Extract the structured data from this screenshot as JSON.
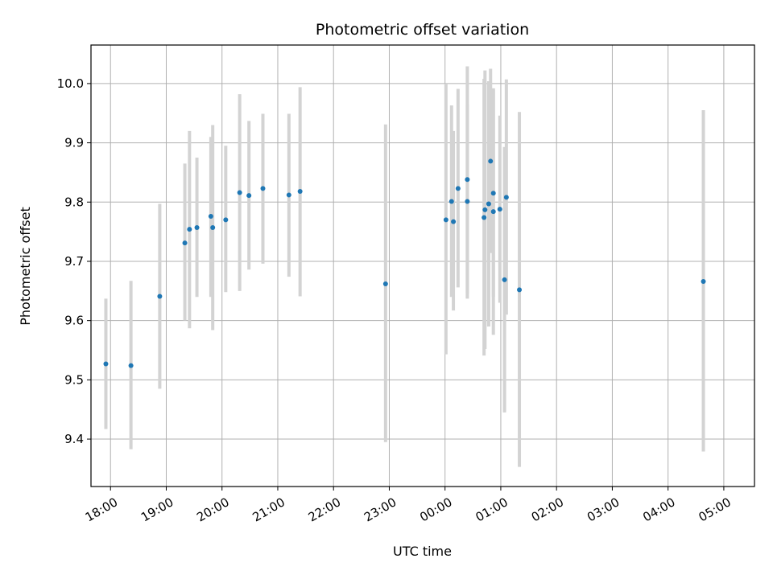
{
  "chart_data": {
    "type": "scatter",
    "title": "Photometric offset variation",
    "xlabel": "UTC time",
    "ylabel": "Photometric offset",
    "grid": true,
    "xlim": [
      -0.35,
      11.55
    ],
    "ylim": [
      9.32,
      10.065
    ],
    "x_ticks": [
      "18:00",
      "19:00",
      "20:00",
      "21:00",
      "22:00",
      "23:00",
      "00:00",
      "01:00",
      "02:00",
      "03:00",
      "04:00",
      "05:00"
    ],
    "y_ticks": [
      "9.4",
      "9.5",
      "9.6",
      "9.7",
      "9.8",
      "9.9",
      "10.0"
    ],
    "y_tick_values": [
      9.4,
      9.5,
      9.6,
      9.7,
      9.8,
      9.9,
      10.0
    ],
    "x_tick_labels_rotated": true,
    "marker_color": "#1f77b4",
    "errorbar_color": "#d3d3d3",
    "points": [
      {
        "t": "17:55",
        "y": 9.527,
        "ylo": 9.417,
        "yhi": 9.637
      },
      {
        "t": "18:22",
        "y": 9.524,
        "ylo": 9.383,
        "yhi": 9.667
      },
      {
        "t": "18:53",
        "y": 9.641,
        "ylo": 9.485,
        "yhi": 9.797
      },
      {
        "t": "19:20",
        "y": 9.731,
        "ylo": 9.6,
        "yhi": 9.865
      },
      {
        "t": "19:25",
        "y": 9.754,
        "ylo": 9.587,
        "yhi": 9.92
      },
      {
        "t": "19:33",
        "y": 9.757,
        "ylo": 9.64,
        "yhi": 9.875
      },
      {
        "t": "19:48",
        "y": 9.776,
        "ylo": 9.64,
        "yhi": 9.91
      },
      {
        "t": "19:50",
        "y": 9.757,
        "ylo": 9.584,
        "yhi": 9.93
      },
      {
        "t": "20:04",
        "y": 9.77,
        "ylo": 9.648,
        "yhi": 9.895
      },
      {
        "t": "20:19",
        "y": 9.816,
        "ylo": 9.65,
        "yhi": 9.982
      },
      {
        "t": "20:29",
        "y": 9.811,
        "ylo": 9.686,
        "yhi": 9.937
      },
      {
        "t": "20:44",
        "y": 9.823,
        "ylo": 9.696,
        "yhi": 9.949
      },
      {
        "t": "21:12",
        "y": 9.812,
        "ylo": 9.674,
        "yhi": 9.949
      },
      {
        "t": "21:24",
        "y": 9.818,
        "ylo": 9.641,
        "yhi": 9.994
      },
      {
        "t": "22:56",
        "y": 9.662,
        "ylo": 9.395,
        "yhi": 9.931
      },
      {
        "t": "00:01",
        "y": 9.77,
        "ylo": 9.543,
        "yhi": 10.0
      },
      {
        "t": "00:07",
        "y": 9.801,
        "ylo": 9.64,
        "yhi": 9.963
      },
      {
        "t": "00:09",
        "y": 9.767,
        "ylo": 9.617,
        "yhi": 9.92
      },
      {
        "t": "00:14",
        "y": 9.823,
        "ylo": 9.656,
        "yhi": 9.991
      },
      {
        "t": "00:24",
        "y": 9.838,
        "ylo": 9.646,
        "yhi": 10.029
      },
      {
        "t": "00:24",
        "y": 9.801,
        "ylo": 9.637,
        "yhi": 9.965
      },
      {
        "t": "00:42",
        "y": 9.774,
        "ylo": 9.541,
        "yhi": 10.008
      },
      {
        "t": "00:43",
        "y": 9.787,
        "ylo": 9.552,
        "yhi": 10.022
      },
      {
        "t": "00:47",
        "y": 9.797,
        "ylo": 9.59,
        "yhi": 10.004
      },
      {
        "t": "00:49",
        "y": 9.869,
        "ylo": 9.714,
        "yhi": 10.025
      },
      {
        "t": "00:52",
        "y": 9.815,
        "ylo": 9.64,
        "yhi": 9.99
      },
      {
        "t": "00:52",
        "y": 9.784,
        "ylo": 9.576,
        "yhi": 9.992
      },
      {
        "t": "00:59",
        "y": 9.788,
        "ylo": 9.63,
        "yhi": 9.946
      },
      {
        "t": "01:04",
        "y": 9.669,
        "ylo": 9.445,
        "yhi": 9.893
      },
      {
        "t": "01:06",
        "y": 9.808,
        "ylo": 9.61,
        "yhi": 10.007
      },
      {
        "t": "01:20",
        "y": 9.652,
        "ylo": 9.353,
        "yhi": 9.952
      },
      {
        "t": "04:38",
        "y": 9.666,
        "ylo": 9.379,
        "yhi": 9.955
      }
    ]
  }
}
